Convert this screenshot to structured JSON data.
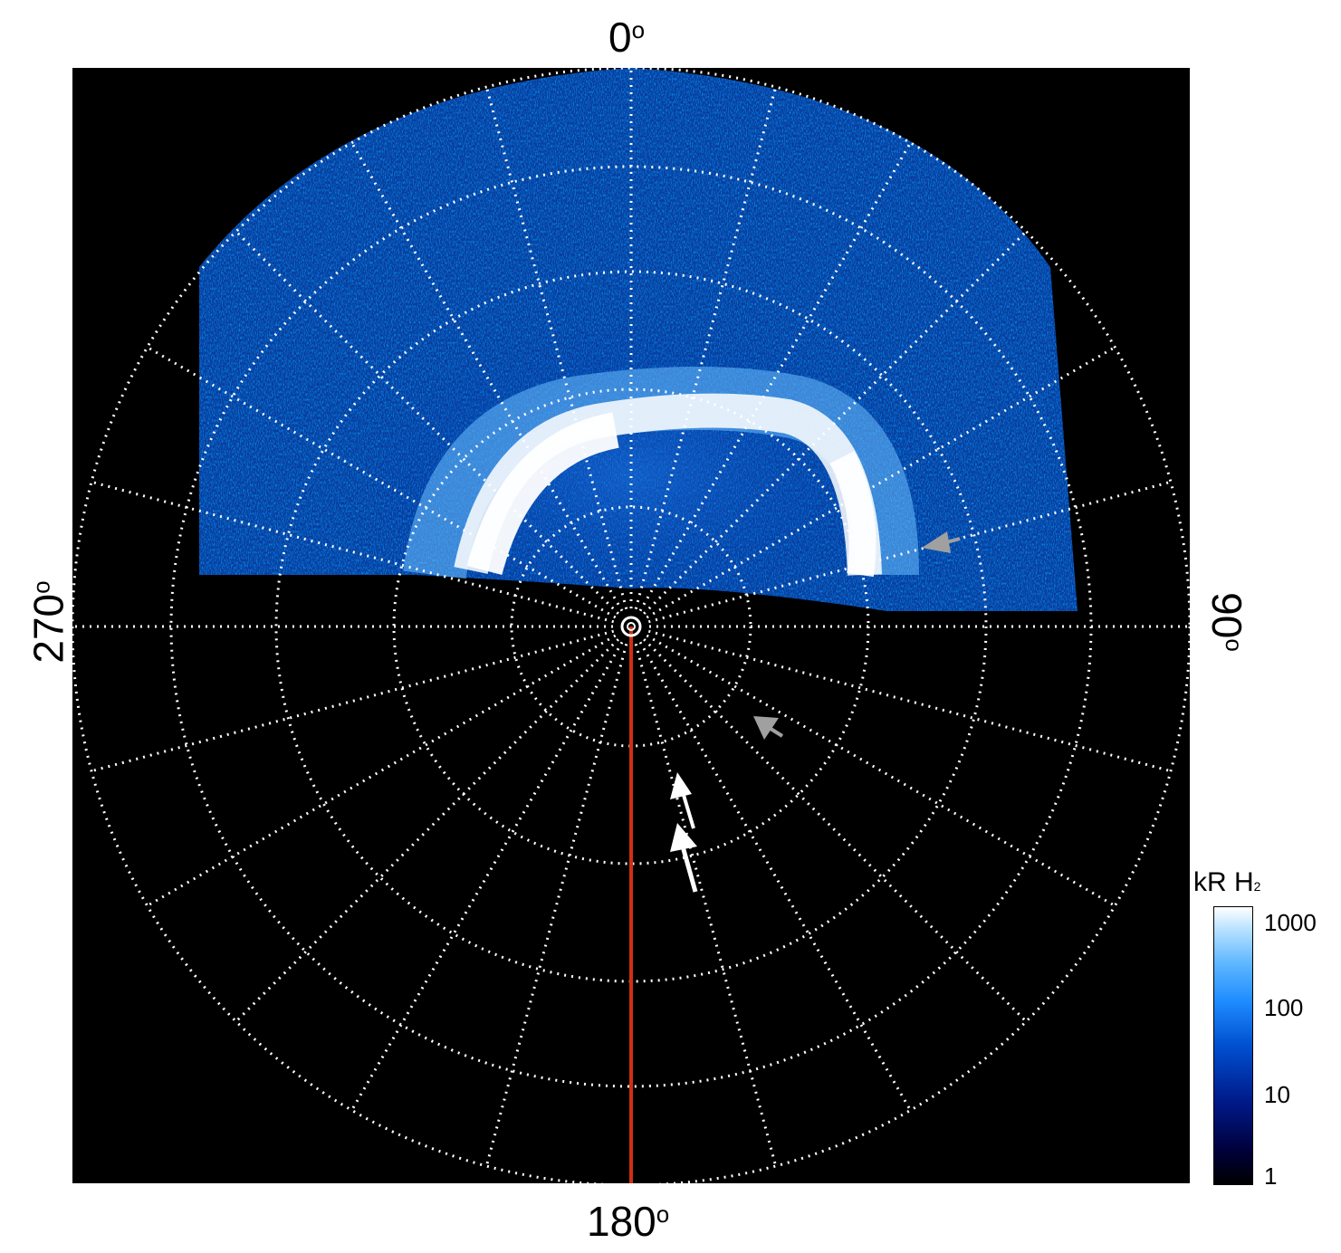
{
  "figure": {
    "labels": {
      "top": "0",
      "right": "90",
      "bottom": "180",
      "left": "270",
      "degree_symbol": "o"
    },
    "colorbar": {
      "title_main": "kR H",
      "title_sub": "2",
      "ticks": [
        "1000",
        "100",
        "10",
        "1"
      ],
      "scale": "log",
      "range": [
        1,
        1000
      ]
    },
    "colors": {
      "background": "#000000",
      "grid": "#ffffff",
      "meridian_line": "#d03010",
      "aurora_bright": "#ffffff",
      "aurora_mid": "#3aa0ff",
      "aurora_dim": "#0040c0",
      "arrow_white": "#ffffff",
      "arrow_gray": "#a0a0a0"
    }
  }
}
